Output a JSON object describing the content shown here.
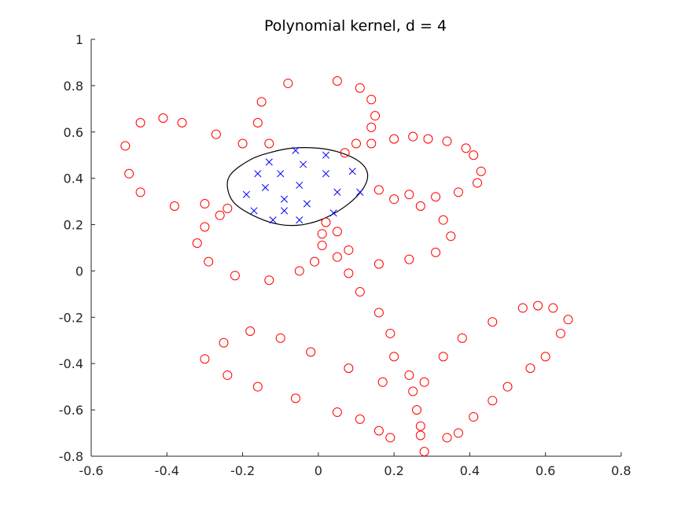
{
  "chart_data": {
    "type": "scatter",
    "title": "Polynomial kernel, d = 4",
    "xlabel": "",
    "ylabel": "",
    "xlim": [
      -0.6,
      0.8
    ],
    "ylim": [
      -0.8,
      1.0
    ],
    "x_ticks": [
      "-0.6",
      "-0.4",
      "-0.2",
      "0",
      "0.2",
      "0.4",
      "0.6",
      "0.8"
    ],
    "y_ticks": [
      "-0.8",
      "-0.6",
      "-0.4",
      "-0.2",
      "0",
      "0.2",
      "0.4",
      "0.6",
      "0.8",
      "1"
    ],
    "grid": false,
    "legend": "none",
    "series": [
      {
        "marker": "circle",
        "color": "#ff0000",
        "points": [
          [
            -0.51,
            0.54
          ],
          [
            -0.5,
            0.42
          ],
          [
            -0.47,
            0.64
          ],
          [
            -0.47,
            0.34
          ],
          [
            -0.41,
            0.66
          ],
          [
            -0.38,
            0.28
          ],
          [
            -0.36,
            0.64
          ],
          [
            -0.32,
            0.12
          ],
          [
            -0.3,
            0.29
          ],
          [
            -0.3,
            0.19
          ],
          [
            -0.29,
            0.04
          ],
          [
            -0.27,
            0.59
          ],
          [
            -0.26,
            0.24
          ],
          [
            -0.24,
            0.27
          ],
          [
            -0.22,
            -0.02
          ],
          [
            -0.2,
            0.55
          ],
          [
            -0.16,
            0.64
          ],
          [
            -0.15,
            0.73
          ],
          [
            -0.13,
            0.55
          ],
          [
            -0.13,
            -0.04
          ],
          [
            -0.08,
            0.81
          ],
          [
            -0.05,
            0.0
          ],
          [
            -0.01,
            0.04
          ],
          [
            0.01,
            0.11
          ],
          [
            0.01,
            0.16
          ],
          [
            0.02,
            0.21
          ],
          [
            0.05,
            0.82
          ],
          [
            0.05,
            0.17
          ],
          [
            0.05,
            0.06
          ],
          [
            0.07,
            0.51
          ],
          [
            0.08,
            0.09
          ],
          [
            0.08,
            -0.01
          ],
          [
            0.1,
            0.55
          ],
          [
            0.11,
            0.79
          ],
          [
            0.11,
            -0.09
          ],
          [
            0.14,
            0.62
          ],
          [
            0.14,
            0.55
          ],
          [
            0.14,
            0.74
          ],
          [
            0.15,
            0.67
          ],
          [
            0.16,
            0.35
          ],
          [
            0.16,
            0.03
          ],
          [
            0.16,
            -0.18
          ],
          [
            0.19,
            -0.27
          ],
          [
            0.2,
            0.31
          ],
          [
            0.2,
            0.57
          ],
          [
            0.2,
            -0.37
          ],
          [
            0.24,
            0.05
          ],
          [
            0.24,
            0.33
          ],
          [
            0.25,
            0.58
          ],
          [
            0.27,
            0.28
          ],
          [
            0.29,
            0.57
          ],
          [
            0.31,
            0.32
          ],
          [
            0.31,
            0.08
          ],
          [
            0.33,
            0.22
          ],
          [
            0.34,
            0.56
          ],
          [
            0.35,
            0.15
          ],
          [
            0.37,
            0.34
          ],
          [
            0.39,
            0.53
          ],
          [
            0.41,
            0.5
          ],
          [
            0.42,
            0.38
          ],
          [
            0.43,
            0.43
          ],
          [
            0.46,
            -0.22
          ],
          [
            0.38,
            -0.29
          ],
          [
            0.33,
            -0.37
          ],
          [
            0.54,
            -0.16
          ],
          [
            0.58,
            -0.15
          ],
          [
            0.62,
            -0.16
          ],
          [
            0.66,
            -0.21
          ],
          [
            0.64,
            -0.27
          ],
          [
            0.6,
            -0.37
          ],
          [
            0.56,
            -0.42
          ],
          [
            0.5,
            -0.5
          ],
          [
            0.46,
            -0.56
          ],
          [
            0.41,
            -0.63
          ],
          [
            0.37,
            -0.7
          ],
          [
            0.34,
            -0.72
          ],
          [
            0.28,
            -0.78
          ],
          [
            0.27,
            -0.71
          ],
          [
            0.27,
            -0.67
          ],
          [
            0.26,
            -0.6
          ],
          [
            0.25,
            -0.52
          ],
          [
            0.24,
            -0.45
          ],
          [
            0.28,
            -0.48
          ],
          [
            0.17,
            -0.48
          ],
          [
            0.16,
            -0.69
          ],
          [
            0.19,
            -0.72
          ],
          [
            0.11,
            -0.64
          ],
          [
            0.05,
            -0.61
          ],
          [
            0.08,
            -0.42
          ],
          [
            -0.02,
            -0.35
          ],
          [
            -0.1,
            -0.29
          ],
          [
            -0.18,
            -0.26
          ],
          [
            -0.25,
            -0.31
          ],
          [
            -0.3,
            -0.38
          ],
          [
            -0.24,
            -0.45
          ],
          [
            -0.16,
            -0.5
          ],
          [
            -0.06,
            -0.55
          ]
        ]
      },
      {
        "marker": "x",
        "color": "#0000ff",
        "points": [
          [
            -0.06,
            0.52
          ],
          [
            0.02,
            0.5
          ],
          [
            -0.13,
            0.47
          ],
          [
            -0.16,
            0.42
          ],
          [
            -0.1,
            0.42
          ],
          [
            0.09,
            0.43
          ],
          [
            -0.04,
            0.46
          ],
          [
            0.02,
            0.42
          ],
          [
            -0.14,
            0.36
          ],
          [
            -0.05,
            0.37
          ],
          [
            0.05,
            0.34
          ],
          [
            0.11,
            0.34
          ],
          [
            -0.19,
            0.33
          ],
          [
            -0.09,
            0.31
          ],
          [
            -0.03,
            0.29
          ],
          [
            -0.17,
            0.26
          ],
          [
            -0.09,
            0.26
          ],
          [
            0.04,
            0.25
          ],
          [
            -0.12,
            0.22
          ],
          [
            -0.05,
            0.22
          ]
        ]
      }
    ],
    "decision_boundary": {
      "shape": "closed-curve",
      "color": "#000000",
      "points": [
        [
          -0.07,
          0.53
        ],
        [
          0.0,
          0.53
        ],
        [
          0.06,
          0.51
        ],
        [
          0.11,
          0.47
        ],
        [
          0.13,
          0.42
        ],
        [
          0.12,
          0.36
        ],
        [
          0.08,
          0.29
        ],
        [
          0.02,
          0.23
        ],
        [
          -0.04,
          0.2
        ],
        [
          -0.1,
          0.2
        ],
        [
          -0.16,
          0.23
        ],
        [
          -0.22,
          0.29
        ],
        [
          -0.24,
          0.36
        ],
        [
          -0.23,
          0.42
        ],
        [
          -0.18,
          0.48
        ],
        [
          -0.13,
          0.51
        ]
      ]
    }
  }
}
